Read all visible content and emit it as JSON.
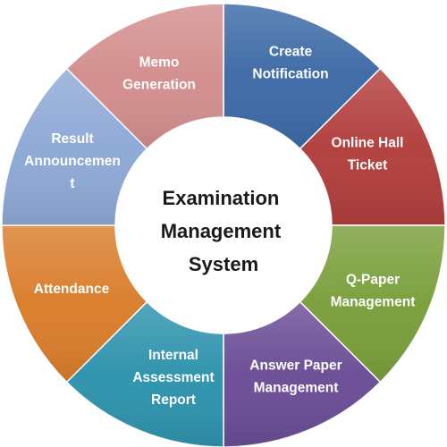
{
  "center": {
    "lines": [
      "Examination",
      "Management",
      "System"
    ]
  },
  "segments": [
    {
      "lines": [
        "Create",
        "Notification"
      ],
      "color": "#3d6aa6"
    },
    {
      "lines": [
        "Online Hall",
        "Ticket"
      ],
      "color": "#b13f3d"
    },
    {
      "lines": [
        "Q-Paper",
        "Management"
      ],
      "color": "#7a9f3b"
    },
    {
      "lines": [
        "Answer Paper",
        "Management"
      ],
      "color": "#6b4d96"
    },
    {
      "lines": [
        "Internal",
        "Assessment",
        "Report"
      ],
      "color": "#2e93ad"
    },
    {
      "lines": [
        "Attendance"
      ],
      "color": "#da7d2c"
    },
    {
      "lines": [
        "Result",
        "Announcemen",
        "t"
      ],
      "color": "#8ea9d6"
    },
    {
      "lines": [
        "Memo",
        "Generation"
      ],
      "color": "#d38e8e"
    }
  ]
}
